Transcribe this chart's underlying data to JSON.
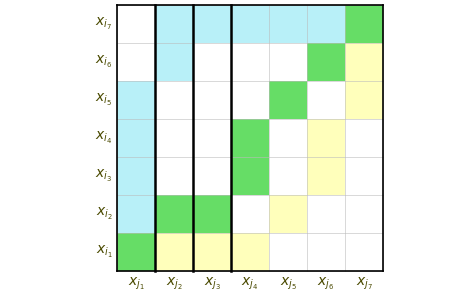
{
  "rows_labels": [
    "i_7",
    "i_6",
    "i_5",
    "i_4",
    "i_3",
    "i_2",
    "i_1"
  ],
  "cols_labels": [
    "j_1",
    "j_2",
    "j_3",
    "j_4",
    "j_5",
    "j_6",
    "j_7"
  ],
  "colors": [
    [
      "W",
      "C",
      "C",
      "C",
      "C",
      "C",
      "G"
    ],
    [
      "W",
      "C",
      "W",
      "W",
      "W",
      "G",
      "Y"
    ],
    [
      "C",
      "W",
      "W",
      "W",
      "G",
      "W",
      "Y"
    ],
    [
      "C",
      "W",
      "W",
      "G",
      "W",
      "Y",
      "W"
    ],
    [
      "C",
      "W",
      "W",
      "G",
      "W",
      "Y",
      "W"
    ],
    [
      "C",
      "G",
      "G",
      "W",
      "Y",
      "W",
      "W"
    ],
    [
      "G",
      "Y",
      "Y",
      "Y",
      "W",
      "W",
      "W"
    ]
  ],
  "color_map": {
    "W": "#ffffff",
    "C": "#b8f0f8",
    "G": "#66dd66",
    "Y": "#ffffbb"
  },
  "vlines_after": [
    1,
    2,
    3
  ],
  "figsize": [
    4.64,
    3.02
  ],
  "dpi": 100,
  "label_fontsize": 10
}
